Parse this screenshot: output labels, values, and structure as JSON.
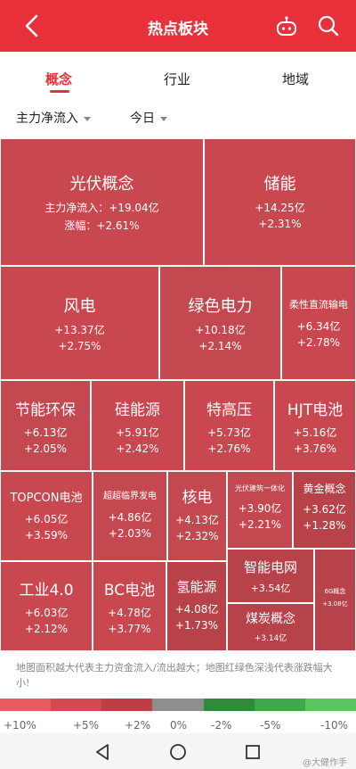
{
  "header": {
    "title": "热点板块"
  },
  "tabs": [
    {
      "label": "概念",
      "active": true
    },
    {
      "label": "行业",
      "active": false
    },
    {
      "label": "地域",
      "active": false
    }
  ],
  "filters": {
    "metric": "主力净流入",
    "period": "今日"
  },
  "tiles": {
    "pv": {
      "name": "光伏概念",
      "inflow": "主力净流入：+19.04亿",
      "change": "涨幅：+2.61%"
    },
    "storage": {
      "name": "储能",
      "inflow": "+14.25亿",
      "change": "+2.31%"
    },
    "wind": {
      "name": "风电",
      "inflow": "+13.37亿",
      "change": "+2.75%"
    },
    "green": {
      "name": "绿色电力",
      "inflow": "+10.18亿",
      "change": "+2.14%"
    },
    "flex_dc": {
      "name": "柔性直流输电",
      "inflow": "+6.34亿",
      "change": "+2.78%"
    },
    "saving": {
      "name": "节能环保",
      "inflow": "+6.13亿",
      "change": "+2.05%"
    },
    "silicon": {
      "name": "硅能源",
      "inflow": "+5.91亿",
      "change": "+2.42%"
    },
    "uhv": {
      "name": "特高压",
      "inflow": "+5.73亿",
      "change": "+2.76%"
    },
    "hjt": {
      "name": "HJT电池",
      "inflow": "+5.16亿",
      "change": "+3.76%"
    },
    "topcon": {
      "name": "TOPCON电池",
      "inflow": "+6.05亿",
      "change": "+3.59%"
    },
    "supercrit": {
      "name": "超超临界发电",
      "inflow": "+4.86亿",
      "change": "+2.03%"
    },
    "nuclear": {
      "name": "核电",
      "inflow": "+4.13亿",
      "change": "+2.32%"
    },
    "pv_building": {
      "name": "光伏建筑一体化",
      "inflow": "+3.90亿",
      "change": "+2.21%"
    },
    "gold": {
      "name": "黄金概念",
      "inflow": "+3.62亿",
      "change": "+1.28%"
    },
    "industry40": {
      "name": "工业4.0",
      "inflow": "+6.03亿",
      "change": "+2.12%"
    },
    "bc": {
      "name": "BC电池",
      "inflow": "+4.78亿",
      "change": "+3.77%"
    },
    "hydrogen": {
      "name": "氢能源",
      "inflow": "+4.08亿",
      "change": "+1.73%"
    },
    "smartgrid": {
      "name": "智能电网",
      "inflow": "+3.54亿"
    },
    "coal": {
      "name": "煤炭概念",
      "inflow": "+3.14亿"
    },
    "g6": {
      "name": "6G概念",
      "inflow": "+3.08亿"
    }
  },
  "note": "地图面积越大代表主力资金流入/流出越大；地图红绿色深浅代表涨跌幅大小!",
  "legend": {
    "colors": [
      "#ea5a63",
      "#d54a52",
      "#bf3d45",
      "#8e8e8e",
      "#2f8a3a",
      "#3ea949",
      "#5ac45f"
    ],
    "labels": [
      "+10%",
      "+5%",
      "+2%",
      "0%",
      "-2%",
      "-5%",
      "-10%"
    ]
  },
  "watermark": "@大健作手"
}
